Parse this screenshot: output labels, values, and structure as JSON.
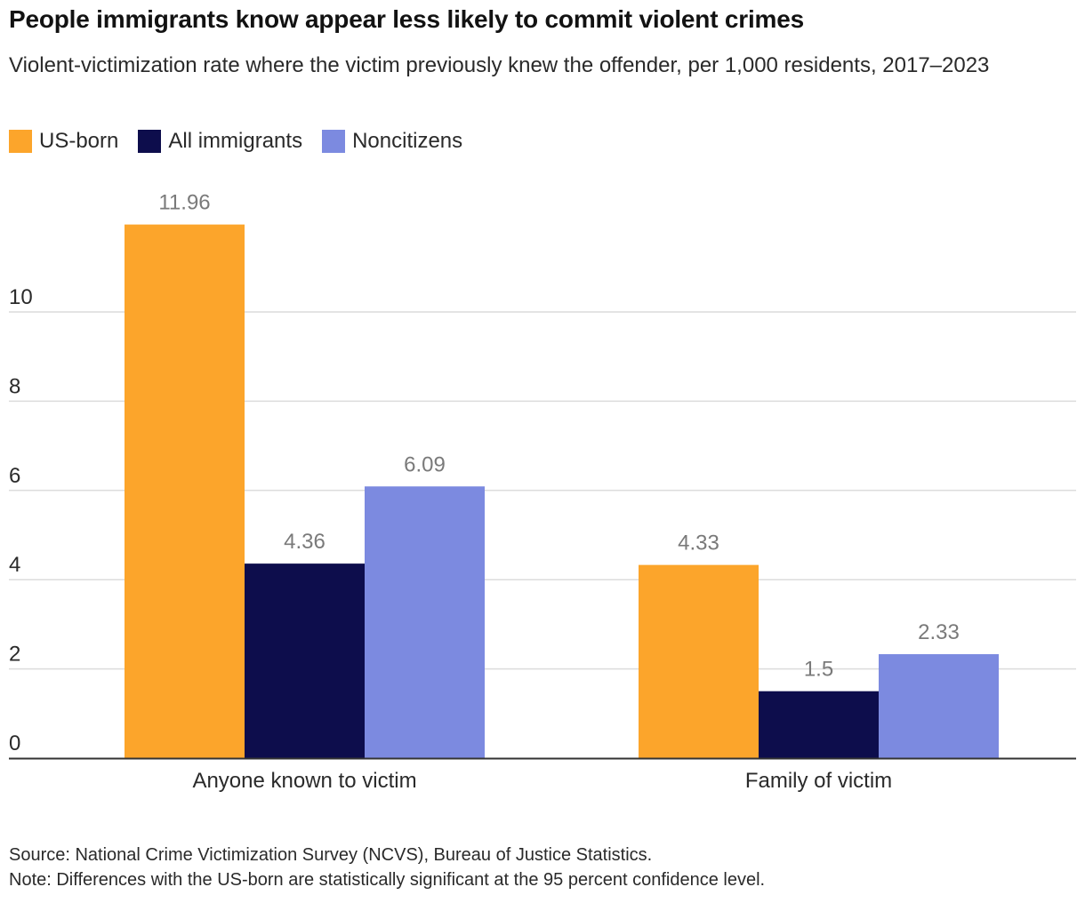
{
  "chart_data": {
    "type": "bar",
    "title": "People immigrants know appear less likely to commit violent crimes",
    "subtitle": "Violent-victimization rate where the victim previously knew the offender, per 1,000 residents, 2017–2023",
    "categories": [
      "Anyone known to victim",
      "Family of victim"
    ],
    "series": [
      {
        "name": "US-born",
        "color": "#FCA52B",
        "values": [
          11.96,
          4.33
        ],
        "labels": [
          "11.96",
          "4.33"
        ]
      },
      {
        "name": "All immigrants",
        "color": "#0D0D4C",
        "values": [
          4.36,
          1.5
        ],
        "labels": [
          "4.36",
          "1.5"
        ]
      },
      {
        "name": "Noncitizens",
        "color": "#7C8AE0",
        "values": [
          6.09,
          2.33
        ],
        "labels": [
          "6.09",
          "2.33"
        ]
      }
    ],
    "yticks": [
      "0",
      "2",
      "4",
      "6",
      "8",
      "10"
    ],
    "ylim": [
      0,
      12
    ],
    "grid": true,
    "legend_position": "top-left",
    "xlabel": "",
    "ylabel": ""
  },
  "footer": {
    "source": "Source: National Crime Victimization Survey (NCVS), Bureau of Justice Statistics.",
    "note": "Note: Differences with the US-born are statistically significant at the 95 percent confidence level."
  }
}
